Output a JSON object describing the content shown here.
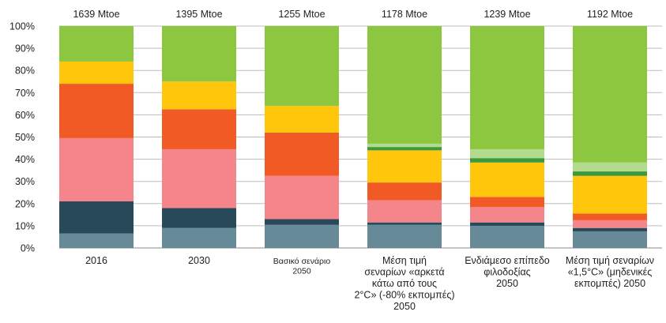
{
  "chart_data": {
    "type": "bar",
    "stacked": true,
    "normalized": true,
    "title": "",
    "xlabel": "",
    "ylabel": "",
    "ylim": [
      0,
      100
    ],
    "y_ticks": [
      "0%",
      "10%",
      "20%",
      "30%",
      "40%",
      "50%",
      "60%",
      "70%",
      "80%",
      "90%",
      "100%"
    ],
    "grid": true,
    "legend": "none",
    "categories": [
      [
        "2016"
      ],
      [
        "2030"
      ],
      [
        "Βασικό σενάριο",
        "2050"
      ],
      [
        "Μέση τιμή",
        "σεναρίων «αρκετά",
        "κάτω από τους",
        "2°C» (-80% εκπομπές)",
        "2050"
      ],
      [
        "Ενδιάμεσο επίπεδο",
        "φιλοδοξίας",
        "2050"
      ],
      [
        "Μέση τιμή σεναρίων",
        "«1,5°C» (μηδενικές",
        "εκπομπές) 2050"
      ]
    ],
    "totals": [
      "1639 Mtoe",
      "1395 Mtoe",
      "1255 Mtoe",
      "1178 Mtoe",
      "1239 Mtoe",
      "1192 Mtoe"
    ],
    "series": [
      {
        "color": "#668a98",
        "values": [
          6.5,
          9,
          10.5,
          10.5,
          10,
          7.5
        ]
      },
      {
        "color": "#27495a",
        "values": [
          14.5,
          9,
          2.5,
          1,
          1.5,
          1.5
        ]
      },
      {
        "color": "#f4858a",
        "values": [
          28.5,
          26.5,
          19.5,
          10,
          7,
          3.5
        ]
      },
      {
        "color": "#f15a24",
        "values": [
          24.5,
          18,
          19.5,
          8,
          4.5,
          3
        ]
      },
      {
        "color": "#ffc60b",
        "values": [
          10,
          12.5,
          12,
          14.5,
          15.5,
          17
        ]
      },
      {
        "color": "#3d9a3c",
        "values": [
          0,
          0,
          0,
          1.5,
          2,
          2
        ]
      },
      {
        "color": "#b3db8e",
        "values": [
          0,
          0,
          0,
          1.5,
          4,
          4
        ]
      },
      {
        "color": "#8dc63f",
        "values": [
          16,
          25,
          36,
          53,
          55.5,
          61.5
        ]
      }
    ]
  }
}
